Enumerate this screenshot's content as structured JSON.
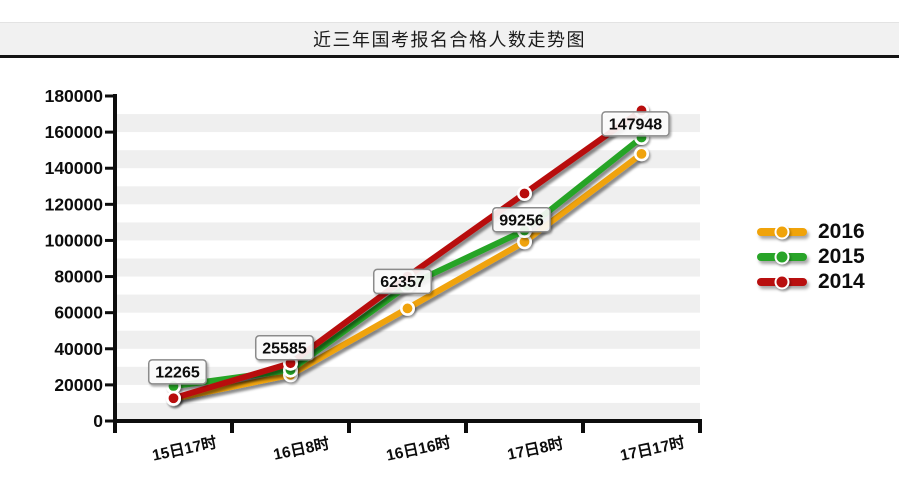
{
  "title": "近三年国考报名合格人数走势图",
  "chart_data": {
    "type": "line",
    "title": "近三年国考报名合格人数走势图",
    "categories": [
      "15日17时",
      "16日8时",
      "16日16时",
      "17日8时",
      "17日17时"
    ],
    "series": [
      {
        "name": "2016",
        "color": "#F0A30A",
        "values": [
          12265,
          25585,
          62357,
          99256,
          147948
        ],
        "point_labels": [
          "12265",
          "25585",
          "62357",
          "99256",
          "147948"
        ]
      },
      {
        "name": "2015",
        "color": "#28A428",
        "values": [
          19300,
          28200,
          75000,
          105500,
          157000
        ]
      },
      {
        "name": "2014",
        "color": "#B80F0F",
        "values": [
          12600,
          32000,
          80000,
          126000,
          172000
        ]
      }
    ],
    "ylim": [
      0,
      180000
    ],
    "ytick_step": 20000,
    "ytick_labels": [
      "0",
      "20000",
      "40000",
      "60000",
      "80000",
      "100000",
      "120000",
      "140000",
      "160000",
      "180000"
    ],
    "grid": "striped-horizontal-bands",
    "legend_position": "right",
    "colors": {
      "axis": "#0d0d0d",
      "stripe": "#efefef",
      "title_bar_bg": "#f1f1f1",
      "callout_bg": "#ffffff",
      "callout_border": "#8b8b8b",
      "label_text": "#0a0a0a"
    }
  }
}
